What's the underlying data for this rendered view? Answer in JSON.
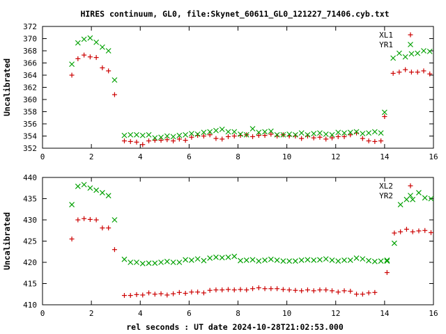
{
  "title": "HIRES continuum, GL0, file:Skynet_60611_GL0_121227_71406.cyb.txt",
  "xlabel": "rel seconds : UT date 2024-10-28T21:02:53.000",
  "colors": {
    "series1": "#cc0000",
    "series2": "#00a000"
  },
  "chart_data": [
    {
      "type": "scatter",
      "ylabel": "Uncalibrated",
      "xlim": [
        0,
        16
      ],
      "ylim": [
        352,
        372
      ],
      "xticks": [
        0,
        2,
        4,
        6,
        8,
        10,
        12,
        14,
        16
      ],
      "yticks": [
        352,
        354,
        356,
        358,
        360,
        362,
        364,
        366,
        368,
        370,
        372
      ],
      "legend_position": "top-right",
      "x": [
        1.2,
        1.45,
        1.7,
        1.95,
        2.2,
        2.45,
        2.7,
        2.95,
        3.2,
        3.45,
        3.7,
        3.95,
        4.2,
        4.45,
        4.7,
        4.95,
        5.2,
        5.45,
        5.7,
        5.95,
        6.2,
        6.45,
        6.7,
        6.95,
        7.2,
        7.45,
        7.7,
        7.95,
        8.2,
        8.45,
        8.7,
        8.95,
        9.2,
        9.45,
        9.7,
        9.95,
        10.2,
        10.45,
        10.7,
        10.95,
        11.2,
        11.45,
        11.7,
        11.95,
        12.2,
        12.45,
        12.7,
        12.95,
        13.2,
        13.45,
        13.7,
        13.95,
        14.2,
        14.45,
        14.7,
        14.95,
        15.2,
        15.45,
        15.7,
        15.95
      ],
      "series": [
        {
          "name": "XL1",
          "marker": "plus",
          "values": [
            364.0,
            366.7,
            367.3,
            367.0,
            366.9,
            365.2,
            364.7,
            360.8,
            353.2,
            353.1,
            353.0,
            352.6,
            353.2,
            353.3,
            353.3,
            353.4,
            353.2,
            353.5,
            353.3,
            353.8,
            354.1,
            354.0,
            354.2,
            353.6,
            353.5,
            353.9,
            354.0,
            354.1,
            354.2,
            353.9,
            354.1,
            354.1,
            354.3,
            354.0,
            354.2,
            354.0,
            354.0,
            353.6,
            354.0,
            353.7,
            353.8,
            353.5,
            353.7,
            353.9,
            353.9,
            354.2,
            354.5,
            353.6,
            353.2,
            353.1,
            353.2,
            357.2,
            364.3,
            364.5,
            364.9,
            364.5,
            364.5,
            364.7,
            364.2,
            364.0
          ],
          "x_override": [
            1.2,
            1.45,
            1.7,
            1.95,
            2.2,
            2.45,
            2.7,
            2.95,
            3.35,
            3.6,
            3.85,
            4.1,
            4.35,
            4.6,
            4.85,
            5.1,
            5.35,
            5.6,
            5.85,
            6.1,
            6.35,
            6.6,
            6.85,
            7.1,
            7.35,
            7.6,
            7.85,
            8.1,
            8.35,
            8.6,
            8.85,
            9.1,
            9.35,
            9.6,
            9.85,
            10.1,
            10.35,
            10.6,
            10.85,
            11.1,
            11.35,
            11.6,
            11.85,
            12.1,
            12.35,
            12.6,
            12.85,
            13.1,
            13.35,
            13.6,
            13.85,
            14.0,
            14.35,
            14.6,
            14.85,
            15.1,
            15.35,
            15.6,
            15.85,
            16.1
          ]
        },
        {
          "name": "YR1",
          "marker": "cross",
          "values": [
            365.8,
            369.3,
            369.9,
            370.1,
            369.4,
            368.6,
            368.0,
            363.2,
            354.1,
            354.2,
            354.2,
            354.1,
            354.2,
            353.7,
            353.8,
            354.0,
            353.9,
            354.1,
            354.2,
            354.4,
            354.3,
            354.6,
            354.7,
            354.9,
            355.1,
            354.7,
            354.7,
            354.3,
            354.2,
            355.2,
            354.6,
            354.7,
            354.8,
            354.2,
            354.2,
            354.3,
            354.2,
            354.5,
            354.2,
            354.4,
            354.5,
            354.3,
            354.2,
            354.6,
            354.5,
            354.6,
            354.7,
            354.4,
            354.5,
            354.7,
            354.5,
            357.9,
            366.8,
            367.6,
            367.0,
            367.5,
            367.6,
            368.0,
            367.9,
            367.8
          ],
          "x_override": [
            1.2,
            1.45,
            1.7,
            1.95,
            2.2,
            2.45,
            2.7,
            2.95,
            3.35,
            3.6,
            3.85,
            4.1,
            4.35,
            4.6,
            4.85,
            5.1,
            5.35,
            5.6,
            5.85,
            6.1,
            6.35,
            6.6,
            6.85,
            7.1,
            7.35,
            7.6,
            7.85,
            8.1,
            8.35,
            8.6,
            8.85,
            9.1,
            9.35,
            9.6,
            9.85,
            10.1,
            10.35,
            10.6,
            10.85,
            11.1,
            11.35,
            11.6,
            11.85,
            12.1,
            12.35,
            12.6,
            12.85,
            13.1,
            13.35,
            13.6,
            13.85,
            14.0,
            14.35,
            14.6,
            14.85,
            15.1,
            15.35,
            15.6,
            15.85,
            16.1
          ]
        }
      ]
    },
    {
      "type": "scatter",
      "ylabel": "Uncalibrated",
      "xlim": [
        0,
        16
      ],
      "ylim": [
        410,
        440
      ],
      "xticks": [
        0,
        2,
        4,
        6,
        8,
        10,
        12,
        14,
        16
      ],
      "yticks": [
        410,
        415,
        420,
        425,
        430,
        435,
        440
      ],
      "legend_position": "top-right",
      "x": [
        1.2,
        1.45,
        1.7,
        1.95,
        2.2,
        2.45,
        2.7,
        2.95,
        3.35,
        3.6,
        3.85,
        4.1,
        4.35,
        4.6,
        4.85,
        5.1,
        5.35,
        5.6,
        5.85,
        6.1,
        6.35,
        6.6,
        6.85,
        7.1,
        7.35,
        7.6,
        7.85,
        8.1,
        8.35,
        8.6,
        8.85,
        9.1,
        9.35,
        9.6,
        9.85,
        10.1,
        10.35,
        10.6,
        10.85,
        11.1,
        11.35,
        11.6,
        11.85,
        12.1,
        12.35,
        12.6,
        12.85,
        13.1,
        13.35,
        13.6,
        13.85,
        14.1,
        14.4,
        14.65,
        14.9,
        15.15,
        15.4,
        15.65,
        15.9
      ],
      "series": [
        {
          "name": "XL2",
          "marker": "plus",
          "values": [
            425.5,
            430.0,
            430.3,
            430.1,
            430.0,
            428.1,
            428.1,
            423.0,
            412.2,
            412.2,
            412.4,
            412.3,
            412.8,
            412.5,
            412.6,
            412.3,
            412.6,
            412.9,
            412.7,
            413.0,
            413.0,
            412.8,
            413.4,
            413.5,
            413.5,
            413.6,
            413.5,
            413.6,
            413.5,
            413.8,
            414.0,
            413.8,
            413.8,
            413.8,
            413.6,
            413.5,
            413.4,
            413.3,
            413.5,
            413.3,
            413.5,
            413.5,
            413.3,
            413.0,
            413.3,
            413.2,
            412.5,
            412.5,
            412.8,
            412.9,
            417.6,
            426.9,
            427.2,
            427.8,
            427.2,
            427.4,
            427.5,
            427.0
          ],
          "x_override": [
            1.2,
            1.45,
            1.7,
            1.95,
            2.2,
            2.45,
            2.7,
            2.95,
            3.35,
            3.6,
            3.85,
            4.1,
            4.35,
            4.6,
            4.85,
            5.1,
            5.35,
            5.6,
            5.85,
            6.1,
            6.35,
            6.6,
            6.85,
            7.1,
            7.35,
            7.6,
            7.85,
            8.1,
            8.35,
            8.6,
            8.85,
            9.1,
            9.35,
            9.6,
            9.85,
            10.1,
            10.35,
            10.6,
            10.85,
            11.1,
            11.35,
            11.6,
            11.85,
            12.1,
            12.35,
            12.6,
            12.85,
            13.1,
            13.35,
            13.6,
            14.1,
            14.4,
            14.65,
            14.9,
            15.15,
            15.4,
            15.65,
            15.9
          ]
        },
        {
          "name": "YR2",
          "marker": "cross",
          "values": [
            433.6,
            437.9,
            438.3,
            437.5,
            437.0,
            436.4,
            435.7,
            430.0,
            420.7,
            420.0,
            420.0,
            419.7,
            419.8,
            419.8,
            420.0,
            420.2,
            420.0,
            420.0,
            420.6,
            420.5,
            420.8,
            420.4,
            421.0,
            421.2,
            421.1,
            421.2,
            421.4,
            420.4,
            420.5,
            420.6,
            420.3,
            420.5,
            420.7,
            420.5,
            420.3,
            420.3,
            420.3,
            420.5,
            420.6,
            420.5,
            420.6,
            420.8,
            420.5,
            420.3,
            420.5,
            420.5,
            421.0,
            420.8,
            420.4,
            420.2,
            420.3,
            420.5,
            420.3,
            424.5,
            433.6,
            434.8,
            434.8,
            436.4,
            435.2,
            435.0
          ],
          "x_override": [
            1.2,
            1.45,
            1.7,
            1.95,
            2.2,
            2.45,
            2.7,
            2.95,
            3.35,
            3.6,
            3.85,
            4.1,
            4.35,
            4.6,
            4.85,
            5.1,
            5.35,
            5.6,
            5.85,
            6.1,
            6.35,
            6.6,
            6.85,
            7.1,
            7.35,
            7.6,
            7.85,
            8.1,
            8.35,
            8.6,
            8.85,
            9.1,
            9.35,
            9.6,
            9.85,
            10.1,
            10.35,
            10.6,
            10.85,
            11.1,
            11.35,
            11.6,
            11.85,
            12.1,
            12.35,
            12.6,
            12.85,
            13.1,
            13.35,
            13.6,
            13.85,
            14.1,
            14.1,
            14.4,
            14.65,
            14.9,
            15.15,
            15.4,
            15.65,
            15.9
          ]
        }
      ]
    }
  ]
}
